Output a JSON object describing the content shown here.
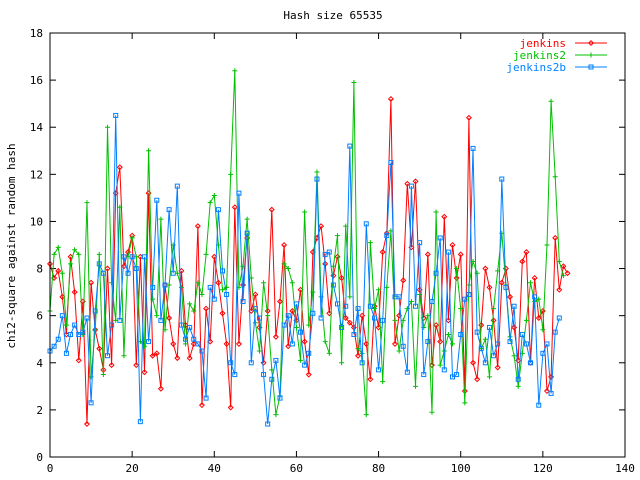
{
  "chart_data": {
    "type": "line",
    "title": "Hash size 65535",
    "xlabel": "",
    "ylabel": "chi2-square against random hash",
    "xlim": [
      0,
      140
    ],
    "ylim": [
      0,
      18
    ],
    "xticks": [
      "0",
      "20",
      "40",
      "60",
      "80",
      "100",
      "120",
      "140"
    ],
    "yticks": [
      "0",
      "2",
      "4",
      "6",
      "8",
      "10",
      "12",
      "14",
      "16",
      "18"
    ],
    "legend_position": "top-right",
    "series": [
      {
        "name": "jenkins",
        "color": "#ff0000",
        "marker": "diamond",
        "values": [
          8.2,
          7.6,
          7.9,
          6.8,
          5.2,
          8.5,
          7.0,
          4.1,
          6.6,
          1.4,
          7.4,
          5.4,
          4.6,
          3.7,
          8.0,
          3.9,
          11.2,
          12.3,
          8.1,
          8.7,
          9.4,
          3.9,
          8.5,
          3.6,
          11.2,
          4.3,
          4.4,
          2.9,
          7.3,
          5.9,
          4.8,
          4.2,
          7.9,
          5.6,
          4.2,
          4.8,
          9.8,
          2.2,
          6.3,
          4.9,
          8.5,
          7.4,
          6.1,
          4.8,
          2.1,
          10.6,
          4.8,
          7.3,
          9.3,
          6.2,
          6.9,
          5.5,
          4.0,
          6.2,
          10.5,
          5.1,
          6.6,
          9.0,
          4.7,
          6.2,
          5.8,
          7.1,
          4.9,
          3.5,
          8.7,
          9.3,
          9.8,
          8.2,
          6.1,
          7.7,
          8.5,
          7.6,
          5.9,
          5.7,
          5.5,
          4.3,
          6.0,
          4.8,
          3.3,
          6.4,
          5.5,
          8.7,
          9.5,
          15.2,
          4.8,
          6.0,
          7.5,
          11.6,
          8.9,
          11.7,
          7.1,
          5.9,
          8.6,
          3.9,
          5.6,
          4.9,
          10.2,
          5.8,
          9.0,
          7.6,
          8.6,
          2.8,
          14.4,
          4.0,
          3.3,
          5.6,
          8.0,
          7.2,
          5.8,
          3.8,
          7.4,
          8.0,
          6.8,
          5.5,
          4.1,
          8.3,
          8.7,
          4.0,
          7.6,
          5.9,
          6.2,
          2.8,
          3.4,
          9.3,
          7.1,
          8.1,
          7.8
        ],
        "visible_labels": []
      },
      {
        "name": "jenkins2",
        "color": "#00c000",
        "marker": "plus",
        "values": [
          6.2,
          8.6,
          8.9,
          7.8,
          5.6,
          8.2,
          8.8,
          8.6,
          5.2,
          10.8,
          3.4,
          5.4,
          8.6,
          3.5,
          14.0,
          7.4,
          5.8,
          10.6,
          4.3,
          8.5,
          9.3,
          8.5,
          4.9,
          4.7,
          13.0,
          6.7,
          6.0,
          10.1,
          5.4,
          7.3,
          9.0,
          7.8,
          7.2,
          4.8,
          6.5,
          6.2,
          7.4,
          6.9,
          8.6,
          10.8,
          11.1,
          9.0,
          7.1,
          7.2,
          12.0,
          16.4,
          7.2,
          8.1,
          10.1,
          7.6,
          5.7,
          4.5,
          7.4,
          6.0,
          3.7,
          1.8,
          2.6,
          8.2,
          8.0,
          7.4,
          5.5,
          4.1,
          10.4,
          5.6,
          7.0,
          12.1,
          6.8,
          4.9,
          4.4,
          8.1,
          9.4,
          4.0,
          9.8,
          6.8,
          15.9,
          4.6,
          4.4,
          1.8,
          9.1,
          6.3,
          7.1,
          3.2,
          7.2,
          9.6,
          5.8,
          4.5,
          5.8,
          6.3,
          6.6,
          3.0,
          6.9,
          5.5,
          6.0,
          1.9,
          10.4,
          3.9,
          4.5,
          5.2,
          4.8,
          8.0,
          6.3,
          2.3,
          7.3,
          8.3,
          7.8,
          4.6,
          5.0,
          3.4,
          6.3,
          7.9,
          9.5,
          7.3,
          5.1,
          4.3,
          3.0,
          4.4,
          5.8,
          7.4,
          6.6,
          6.7,
          5.4,
          9.0,
          15.1,
          11.9,
          8.3,
          7.7
        ]
      },
      {
        "name": "jenkins2b",
        "color": "#0080ff",
        "marker": "square",
        "values": [
          4.5,
          4.7,
          5.0,
          6.0,
          4.4,
          5.2,
          5.6,
          5.2,
          5.3,
          5.9,
          2.3,
          6.2,
          8.2,
          7.8,
          4.3,
          5.6,
          14.5,
          5.8,
          8.5,
          7.8,
          8.5,
          8.0,
          1.5,
          8.5,
          4.9,
          7.2,
          10.9,
          5.8,
          7.3,
          10.5,
          7.8,
          11.5,
          5.6,
          5.0,
          5.5,
          5.0,
          4.8,
          4.5,
          2.5,
          7.2,
          6.7,
          10.5,
          7.9,
          6.9,
          4.0,
          3.5,
          11.2,
          6.6,
          9.5,
          4.0,
          6.3,
          5.9,
          3.5,
          1.4,
          3.3,
          4.1,
          2.5,
          5.6,
          6.0,
          4.8,
          6.5,
          5.3,
          3.9,
          4.4,
          6.1,
          11.8,
          5.9,
          8.6,
          8.7,
          7.3,
          6.5,
          5.5,
          6.4,
          13.2,
          5.2,
          6.3,
          4.0,
          9.9,
          6.4,
          5.9,
          3.7,
          5.8,
          9.4,
          12.5,
          6.8,
          6.8,
          4.7,
          3.6,
          11.5,
          6.4,
          9.1,
          3.5,
          4.9,
          6.6,
          7.8,
          9.3,
          3.7,
          8.7,
          3.4,
          3.5,
          5.2,
          6.7,
          6.9,
          13.1,
          5.3,
          4.6,
          4.0,
          5.5,
          4.3,
          4.8,
          11.8,
          7.2,
          4.9,
          6.4,
          3.3,
          5.2,
          4.8,
          4.0,
          6.8,
          2.2,
          4.4,
          4.8,
          2.7,
          5.3,
          5.9
        ]
      }
    ]
  }
}
